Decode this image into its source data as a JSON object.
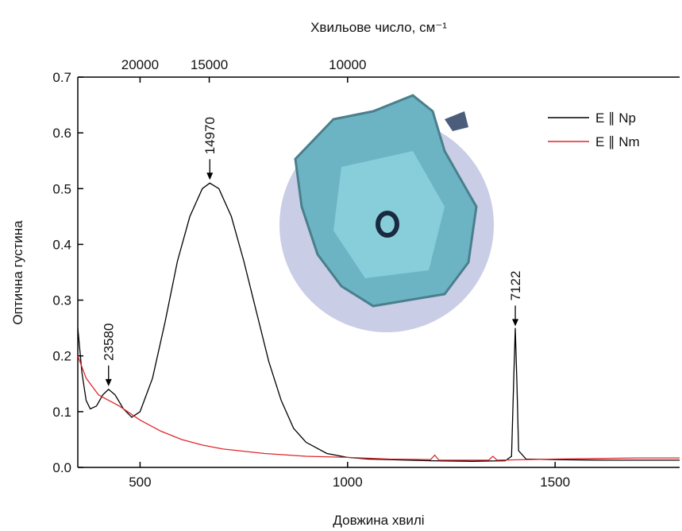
{
  "chart_data": {
    "type": "line",
    "xlabel": "Довжина хвилі",
    "ylabel": "Оптична густина",
    "x2label": "Хвильове число, см⁻¹",
    "xlim": [
      350,
      1800
    ],
    "ylim": [
      0,
      0.7
    ],
    "xticks": [
      500,
      1000,
      1500
    ],
    "yticks": [
      {
        "value": 0,
        "label": "0.0"
      },
      0.1,
      0.2,
      0.3,
      0.4,
      0.5,
      0.6,
      0.7
    ],
    "x2ticks": [
      20000,
      15000,
      10000
    ],
    "legend": "upper right",
    "series": [
      {
        "name": "E ∥ Np",
        "color": "#000000",
        "x": [
          350,
          360,
          370,
          380,
          395,
          410,
          424,
          440,
          460,
          480,
          500,
          530,
          560,
          590,
          620,
          650,
          668,
          690,
          720,
          750,
          780,
          810,
          840,
          870,
          900,
          950,
          1000,
          1050,
          1100,
          1200,
          1300,
          1380,
          1395,
          1400,
          1404,
          1408,
          1412,
          1430,
          1500,
          1600,
          1700,
          1800
        ],
        "values": [
          0.25,
          0.17,
          0.12,
          0.105,
          0.11,
          0.13,
          0.14,
          0.13,
          0.105,
          0.09,
          0.1,
          0.16,
          0.26,
          0.37,
          0.45,
          0.5,
          0.51,
          0.5,
          0.45,
          0.37,
          0.28,
          0.19,
          0.12,
          0.07,
          0.045,
          0.025,
          0.018,
          0.015,
          0.014,
          0.012,
          0.011,
          0.012,
          0.02,
          0.15,
          0.25,
          0.15,
          0.03,
          0.015,
          0.014,
          0.013,
          0.013,
          0.013
        ]
      },
      {
        "name": "E ∥ Nm",
        "color": "#e0262b",
        "x": [
          350,
          370,
          400,
          450,
          500,
          550,
          600,
          650,
          700,
          800,
          900,
          1000,
          1100,
          1200,
          1210,
          1220,
          1340,
          1350,
          1360,
          1500,
          1600,
          1700,
          1800
        ],
        "values": [
          0.2,
          0.16,
          0.13,
          0.11,
          0.085,
          0.065,
          0.05,
          0.04,
          0.033,
          0.025,
          0.02,
          0.018,
          0.015,
          0.014,
          0.022,
          0.013,
          0.013,
          0.02,
          0.013,
          0.015,
          0.016,
          0.017,
          0.017
        ]
      }
    ],
    "peak_labels": [
      23580,
      14970,
      7122
    ]
  }
}
